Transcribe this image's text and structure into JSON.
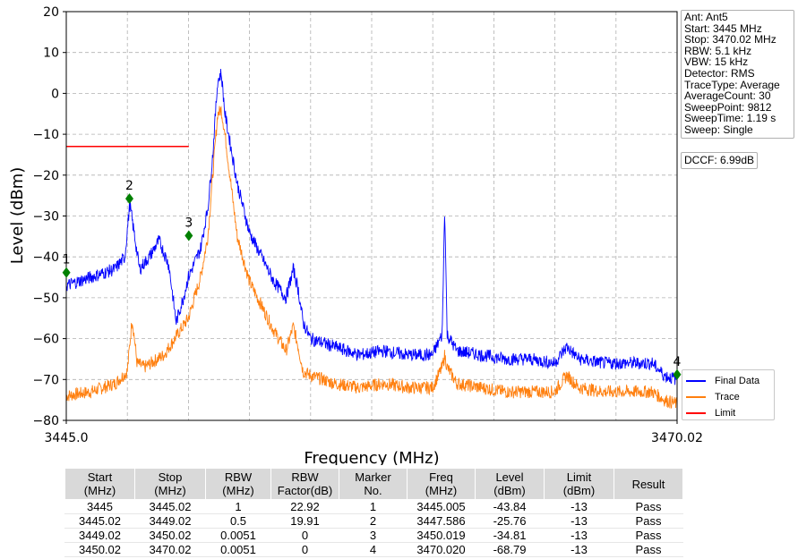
{
  "chart_data": {
    "type": "line",
    "xlabel": "Frequency (MHz)",
    "ylabel": "Level (dBm)",
    "xlim": [
      3445.0,
      3470.02
    ],
    "ylim": [
      -80,
      20
    ],
    "x_tick_labels": [
      "3445.0",
      "3470.02"
    ],
    "y_ticks": [
      20,
      10,
      0,
      -10,
      -20,
      -30,
      -40,
      -50,
      -60,
      -70,
      -80
    ],
    "y_tick_labels": [
      "20",
      "10",
      "0",
      "−10",
      "−20",
      "−30",
      "−40",
      "−50",
      "−60",
      "−70",
      "−80"
    ],
    "grid": true,
    "legend_position": "right",
    "series": [
      {
        "name": "Final Data",
        "color": "#0000ff",
        "x": [
          3445.0,
          3446.0,
          3447.0,
          3447.4,
          3447.6,
          3447.8,
          3448.0,
          3448.4,
          3448.8,
          3449.2,
          3449.5,
          3449.8,
          3450.0,
          3450.5,
          3450.8,
          3451.0,
          3451.2,
          3451.35,
          3451.5,
          3452.0,
          3452.5,
          3453.0,
          3453.5,
          3454.0,
          3454.3,
          3454.5,
          3454.7,
          3455.0,
          3456.0,
          3457.0,
          3458.0,
          3459.0,
          3460.0,
          3460.4,
          3460.5,
          3460.6,
          3461.0,
          3462.0,
          3463.0,
          3464.0,
          3465.0,
          3465.5,
          3466.0,
          3467.0,
          3468.0,
          3469.0,
          3469.5,
          3470.02
        ],
        "y": [
          -47,
          -45,
          -43,
          -40,
          -27,
          -35,
          -43,
          -40,
          -36,
          -42,
          -56,
          -50,
          -45,
          -38,
          -28,
          -15,
          3,
          5,
          -5,
          -22,
          -34,
          -40,
          -46,
          -50,
          -43,
          -48,
          -56,
          -60,
          -62,
          -64,
          -63,
          -64,
          -64,
          -59,
          -27,
          -59,
          -63,
          -64,
          -65,
          -65,
          -66,
          -62,
          -65,
          -66,
          -66,
          -66,
          -69,
          -70
        ]
      },
      {
        "name": "Trace",
        "color": "#ff7f0e",
        "x": [
          3445.0,
          3446.0,
          3447.0,
          3447.5,
          3447.7,
          3447.9,
          3448.2,
          3449.0,
          3450.0,
          3450.5,
          3450.8,
          3451.0,
          3451.2,
          3451.35,
          3451.5,
          3452.0,
          3452.5,
          3453.0,
          3453.5,
          3454.0,
          3454.3,
          3454.5,
          3454.7,
          3455.0,
          3456.0,
          3457.0,
          3458.0,
          3459.0,
          3460.0,
          3460.4,
          3460.5,
          3460.6,
          3461.0,
          3462.0,
          3463.0,
          3464.0,
          3465.0,
          3465.5,
          3466.0,
          3467.0,
          3468.0,
          3469.0,
          3469.5,
          3470.02
        ],
        "y": [
          -74,
          -73,
          -71,
          -68,
          -55,
          -66,
          -67,
          -64,
          -55,
          -45,
          -35,
          -20,
          -5,
          -4,
          -10,
          -35,
          -46,
          -52,
          -58,
          -63,
          -57,
          -62,
          -68,
          -69,
          -71,
          -72,
          -71,
          -72,
          -72,
          -67,
          -64,
          -67,
          -71,
          -72,
          -73,
          -73,
          -73,
          -69,
          -72,
          -73,
          -73,
          -73,
          -75,
          -76
        ]
      },
      {
        "name": "Limit",
        "color": "#ff0000",
        "x": [
          3445.0,
          3450.02
        ],
        "y": [
          -13,
          -13
        ]
      }
    ],
    "markers": [
      {
        "label": "1",
        "x": 3445.005,
        "y": -43.84
      },
      {
        "label": "2",
        "x": 3447.586,
        "y": -25.76
      },
      {
        "label": "3",
        "x": 3450.019,
        "y": -34.81
      },
      {
        "label": "4",
        "x": 3470.02,
        "y": -68.79
      }
    ],
    "marker_color": "#008000"
  },
  "info": {
    "lines": [
      "Ant: Ant5",
      "Start: 3445 MHz",
      "Stop: 3470.02 MHz",
      "RBW: 5.1 kHz",
      "VBW: 15 kHz",
      "Detector: RMS",
      "TraceType: Average",
      "AverageCount: 30",
      "SweepPoint: 9812",
      "SweepTime: 1.19 s",
      "Sweep: Single"
    ],
    "dccf": "DCCF: 6.99dB"
  },
  "table": {
    "headers": [
      [
        "Start",
        "(MHz)"
      ],
      [
        "Stop",
        "(MHz)"
      ],
      [
        "RBW",
        "(MHz)"
      ],
      [
        "RBW",
        "Factor(dB)"
      ],
      [
        "Marker",
        "No."
      ],
      [
        "Freq",
        "(MHz)"
      ],
      [
        "Level",
        "(dBm)"
      ],
      [
        "Limit",
        "(dBm)"
      ],
      [
        "Result"
      ]
    ],
    "rows": [
      [
        "3445",
        "3445.02",
        "1",
        "22.92",
        "1",
        "3445.005",
        "-43.84",
        "-13",
        "Pass"
      ],
      [
        "3445.02",
        "3449.02",
        "0.5",
        "19.91",
        "2",
        "3447.586",
        "-25.76",
        "-13",
        "Pass"
      ],
      [
        "3449.02",
        "3450.02",
        "0.0051",
        "0",
        "3",
        "3450.019",
        "-34.81",
        "-13",
        "Pass"
      ],
      [
        "3450.02",
        "3470.02",
        "0.0051",
        "0",
        "4",
        "3470.020",
        "-68.79",
        "-13",
        "Pass"
      ]
    ]
  }
}
